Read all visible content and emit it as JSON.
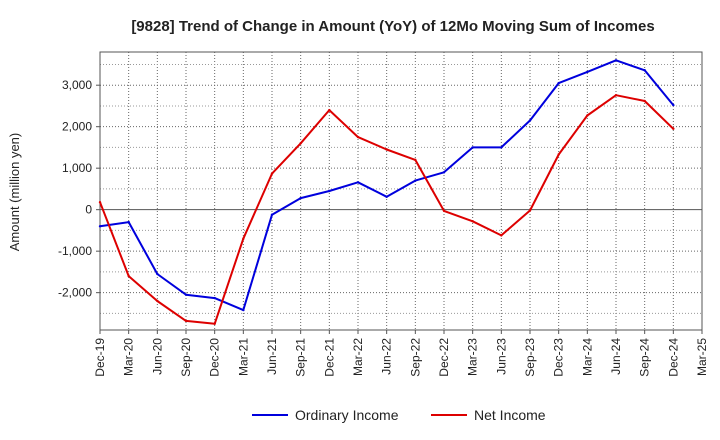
{
  "chart_data": {
    "type": "line",
    "title": "[9828]  Trend of Change in Amount (YoY) of 12Mo Moving Sum of Incomes",
    "xlabel": "",
    "ylabel": "Amount (million yen)",
    "categories": [
      "Dec-19",
      "Mar-20",
      "Jun-20",
      "Sep-20",
      "Dec-20",
      "Mar-21",
      "Jun-21",
      "Sep-21",
      "Dec-21",
      "Mar-22",
      "Jun-22",
      "Sep-22",
      "Dec-22",
      "Mar-23",
      "Jun-23",
      "Sep-23",
      "Dec-23",
      "Mar-24",
      "Jun-24",
      "Sep-24",
      "Dec-24",
      "Mar-25"
    ],
    "ylim": [
      -2900,
      3800
    ],
    "yticks": [
      -2000,
      -1000,
      0,
      1000,
      2000,
      3000
    ],
    "ytick_labels": [
      "-2,000",
      "-1,000",
      "0",
      "1,000",
      "2,000",
      "3,000"
    ],
    "grid": true,
    "legend_position": "bottom",
    "series": [
      {
        "name": "Ordinary Income",
        "color": "#0000dd",
        "values": [
          -400,
          -300,
          -1550,
          -2050,
          -2130,
          -2420,
          -120,
          280,
          450,
          660,
          310,
          700,
          900,
          1500,
          1500,
          2150,
          3050,
          3320,
          3600,
          3360,
          2520,
          null
        ]
      },
      {
        "name": "Net Income",
        "color": "#dd0000",
        "values": [
          180,
          -1600,
          -2200,
          -2680,
          -2750,
          -700,
          870,
          1600,
          2400,
          1750,
          1450,
          1200,
          -30,
          -280,
          -620,
          -20,
          1330,
          2270,
          2760,
          2620,
          1950,
          null
        ]
      }
    ]
  }
}
